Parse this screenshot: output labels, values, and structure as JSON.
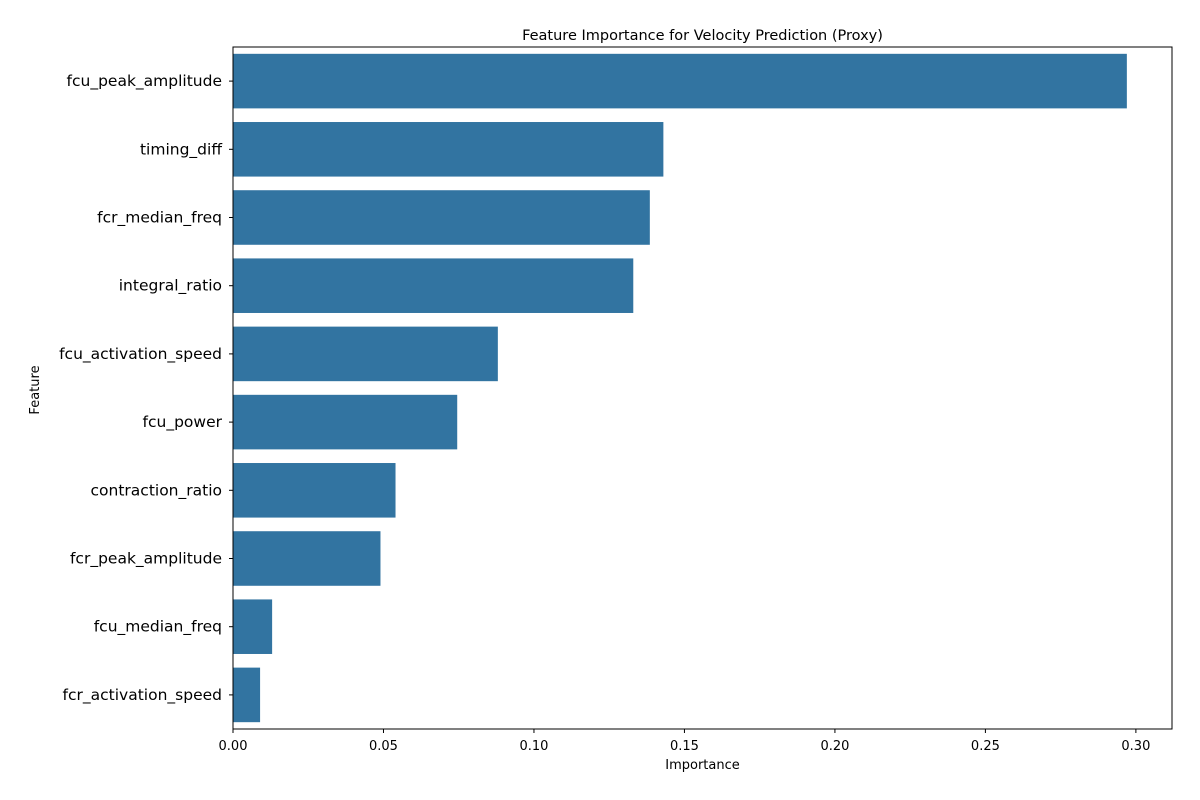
{
  "chart_data": {
    "type": "bar",
    "orientation": "horizontal",
    "title": "Feature Importance for Velocity Prediction (Proxy)",
    "xlabel": "Importance",
    "ylabel": "Feature",
    "categories": [
      "fcu_peak_amplitude",
      "timing_diff",
      "fcr_median_freq",
      "integral_ratio",
      "fcu_activation_speed",
      "fcu_power",
      "contraction_ratio",
      "fcr_peak_amplitude",
      "fcu_median_freq",
      "fcr_activation_speed"
    ],
    "values": [
      0.297,
      0.143,
      0.1385,
      0.133,
      0.088,
      0.0745,
      0.054,
      0.049,
      0.013,
      0.009
    ],
    "xlim": [
      0,
      0.312
    ],
    "xticks": [
      0.0,
      0.05,
      0.1,
      0.15,
      0.2,
      0.25,
      0.3
    ],
    "xtick_labels": [
      "0.00",
      "0.05",
      "0.10",
      "0.15",
      "0.20",
      "0.25",
      "0.30"
    ],
    "bar_color": "#3274a1",
    "grid": false,
    "legend": "none"
  }
}
